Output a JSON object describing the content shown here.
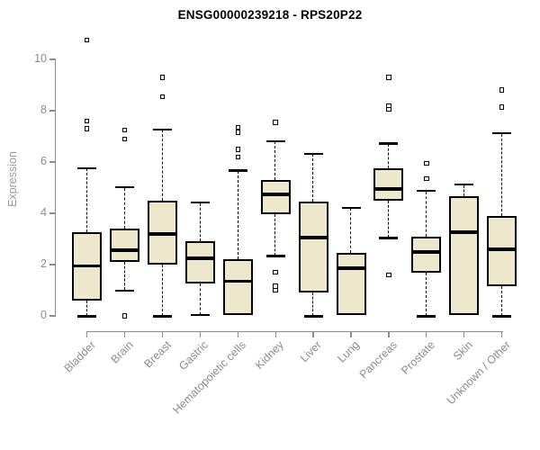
{
  "chart_data": {
    "type": "boxplot",
    "title": "ENSG00000239218 - RPS20P22",
    "xlabel": "",
    "ylabel": "Expression",
    "y_ticks": [
      0,
      2,
      4,
      6,
      8,
      10
    ],
    "ylim": [
      -0.3,
      11
    ],
    "grid": false,
    "legend": "none",
    "categories": [
      "Bladder",
      "Brain",
      "Breast",
      "Gastric",
      "Hematopoietic cells",
      "Kidney",
      "Liver",
      "Lung",
      "Pancreas",
      "Prostate",
      "Skin",
      "Unknown / Other"
    ],
    "series": [
      {
        "label": "Bladder",
        "whisker_low": 0,
        "q1": 0.6,
        "median": 1.95,
        "q3": 3.25,
        "whisker_high": 5.75,
        "outliers": [
          7.6,
          7.3,
          10.75
        ]
      },
      {
        "label": "Brain",
        "whisker_low": 1.0,
        "q1": 2.1,
        "median": 2.55,
        "q3": 3.4,
        "whisker_high": 5.0,
        "outliers": [
          7.25,
          6.9,
          0
        ]
      },
      {
        "label": "Breast",
        "whisker_low": 0,
        "q1": 2.0,
        "median": 3.2,
        "q3": 4.5,
        "whisker_high": 7.25,
        "outliers": [
          9.3,
          8.55
        ]
      },
      {
        "label": "Gastric",
        "whisker_low": 0.05,
        "q1": 1.25,
        "median": 2.25,
        "q3": 2.9,
        "whisker_high": 4.4,
        "outliers": []
      },
      {
        "label": "Hematopoietic cells",
        "whisker_low": 0.05,
        "q1": 0.05,
        "median": 1.35,
        "q3": 2.2,
        "whisker_high": 5.65,
        "outliers": [
          7.35,
          7.15,
          6.5,
          6.2
        ]
      },
      {
        "label": "Kidney",
        "whisker_low": 2.35,
        "q1": 3.95,
        "median": 4.75,
        "q3": 5.3,
        "whisker_high": 6.8,
        "outliers": [
          7.55,
          1.7,
          1.15,
          1.0
        ]
      },
      {
        "label": "Liver",
        "whisker_low": 0,
        "q1": 0.9,
        "median": 3.05,
        "q3": 4.45,
        "whisker_high": 6.3,
        "outliers": []
      },
      {
        "label": "Lung",
        "whisker_low": 0.05,
        "q1": 0.05,
        "median": 1.85,
        "q3": 2.45,
        "whisker_high": 4.2,
        "outliers": []
      },
      {
        "label": "Pancreas",
        "whisker_low": 3.05,
        "q1": 4.5,
        "median": 4.95,
        "q3": 5.75,
        "whisker_high": 6.7,
        "outliers": [
          9.3,
          8.2,
          8.05,
          1.6
        ]
      },
      {
        "label": "Prostate",
        "whisker_low": 0,
        "q1": 1.7,
        "median": 2.5,
        "q3": 3.1,
        "whisker_high": 4.85,
        "outliers": [
          5.95,
          5.35
        ]
      },
      {
        "label": "Skin",
        "whisker_low": 0.05,
        "q1": 0.05,
        "median": 3.25,
        "q3": 4.65,
        "whisker_high": 5.1,
        "outliers": []
      },
      {
        "label": "Unknown / Other",
        "whisker_low": 0,
        "q1": 1.15,
        "median": 2.6,
        "q3": 3.9,
        "whisker_high": 7.1,
        "outliers": [
          8.8,
          8.15
        ]
      }
    ],
    "colors": {
      "background": "#FFFFFF",
      "box_fill": "#EDE7CE",
      "box_border": "#000000",
      "median": "#000000",
      "whisker": "#000000",
      "axis": "#8C8C8C",
      "tick_label": "#8C8C8C",
      "axis_label": "#9A9A9A",
      "title": "#000000"
    }
  }
}
